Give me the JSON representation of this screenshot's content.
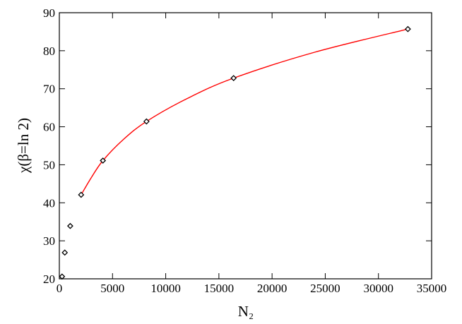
{
  "chart_data": {
    "type": "scatter",
    "xlabel": "N₂",
    "ylabel": "χ(β=ln 2)",
    "xlim": [
      0,
      35000
    ],
    "xticks": [
      0,
      5000,
      10000,
      15000,
      20000,
      25000,
      30000,
      35000
    ],
    "ylim": [
      20,
      90
    ],
    "yticks": [
      20,
      30,
      40,
      50,
      60,
      70,
      80,
      90
    ],
    "series": [
      {
        "type": "scatter",
        "color": "#000000",
        "x": [
          256,
          512,
          1024,
          2048,
          4096,
          8192,
          16384,
          32768
        ],
        "values": [
          20.6,
          26.9,
          33.9,
          42.1,
          51.1,
          61.4,
          72.8,
          85.7
        ]
      },
      {
        "type": "line",
        "color": "#ff0000",
        "x": [
          2048,
          3000,
          4096,
          6000,
          8192,
          12000,
          16384,
          24000,
          32768
        ],
        "values": [
          42.1,
          46.6,
          51.1,
          56.6,
          61.4,
          67.4,
          72.8,
          79.6,
          85.7
        ]
      }
    ]
  }
}
